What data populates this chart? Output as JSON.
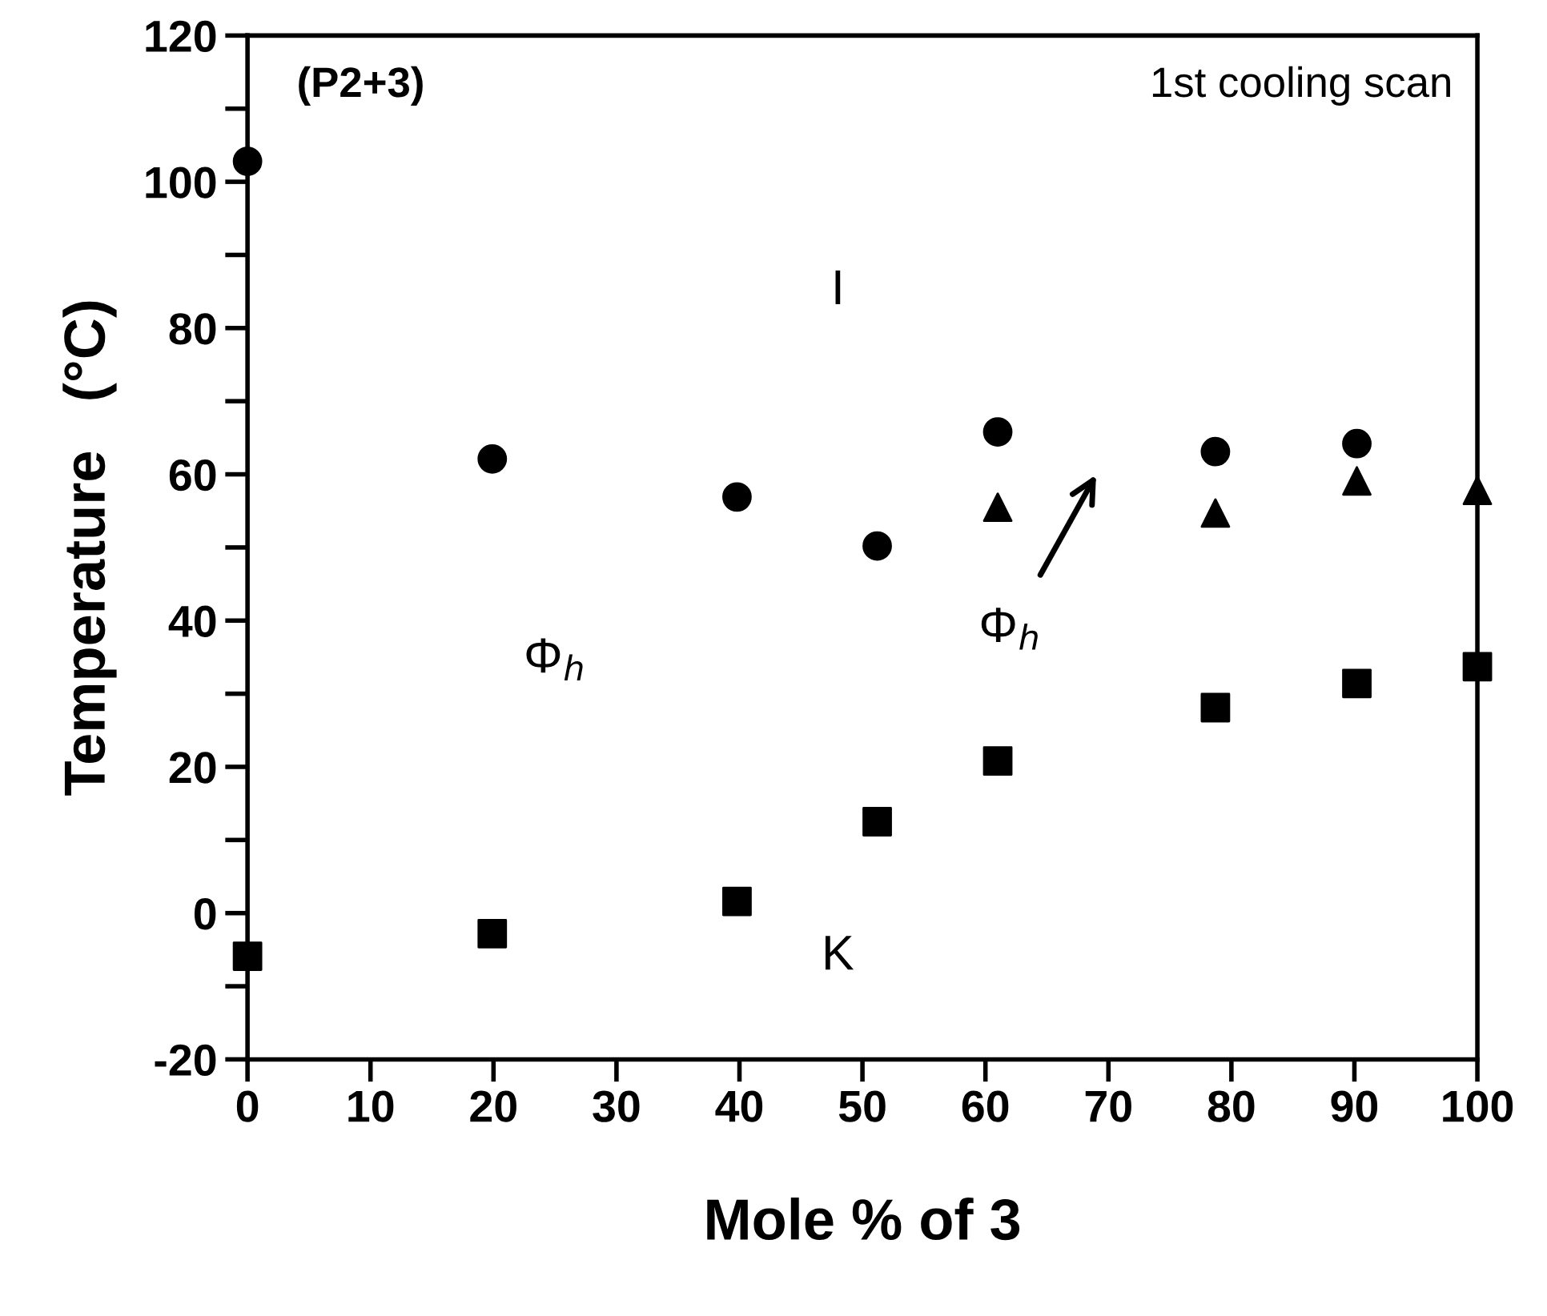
{
  "chart_data": {
    "type": "scatter",
    "xlabel": "Mole % of 3",
    "ylabel": "Temperature   (°C)",
    "series": [
      {
        "marker": "circle",
        "color": "#000000",
        "x": [
          0,
          19.9,
          39.8,
          51.2,
          61.0,
          78.7,
          90.2
        ],
        "values": [
          102.8,
          62.1,
          56.9,
          50.2,
          65.8,
          63.1,
          64.2
        ]
      },
      {
        "marker": "triangle",
        "color": "#000000",
        "x": [
          61.0,
          78.7,
          90.2,
          100
        ],
        "values": [
          55.5,
          54.7,
          59.1,
          57.8
        ]
      },
      {
        "marker": "square",
        "color": "#000000",
        "x": [
          0,
          19.9,
          39.8,
          51.2,
          61.0,
          78.7,
          90.2,
          100
        ],
        "values": [
          -5.9,
          -2.8,
          1.6,
          12.5,
          20.8,
          28.1,
          31.4,
          33.7
        ]
      }
    ],
    "annotations": [
      "(P2+3)",
      "1st cooling scan",
      "I",
      "Φ$_{h}$",
      "Φ$_{h}$",
      "K"
    ],
    "xlim": [
      0,
      100
    ],
    "ylim": [
      -20,
      120
    ],
    "xticks": [
      0,
      10,
      20,
      30,
      40,
      50,
      60,
      70,
      80,
      90,
      100
    ],
    "yticks": [
      -20,
      {
        "value": -10,
        "label": null
      },
      0,
      {
        "value": 10,
        "label": null
      },
      20,
      {
        "value": 30,
        "label": null
      },
      40,
      {
        "value": 50,
        "label": null
      },
      60,
      {
        "value": 70,
        "label": null
      },
      80,
      {
        "value": 90,
        "label": null
      },
      100,
      {
        "value": 110,
        "label": null
      },
      120
    ],
    "grid": false
  }
}
